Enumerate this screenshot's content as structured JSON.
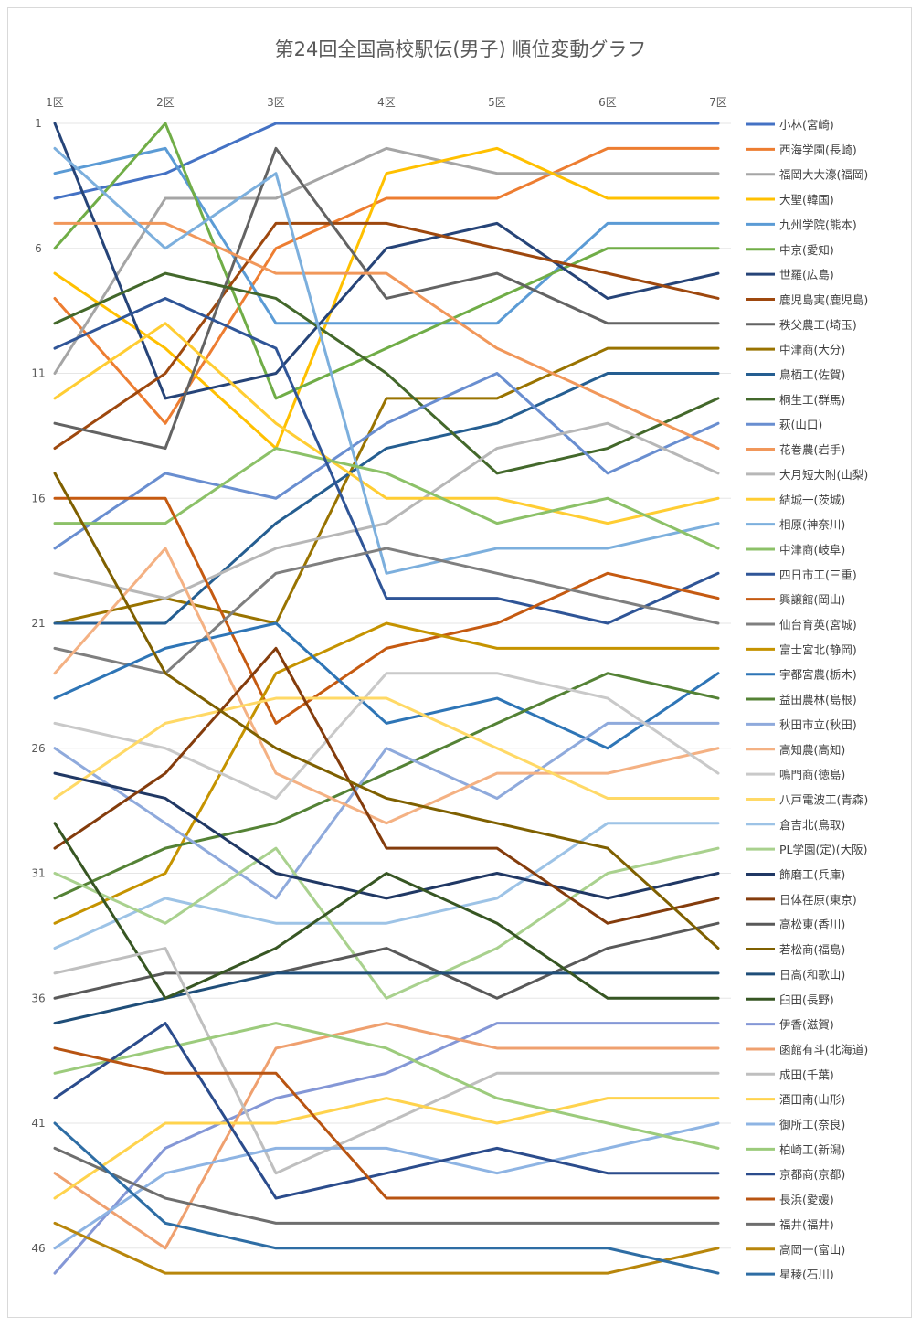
{
  "chart_data": {
    "type": "line",
    "title": "第24回全国高校駅伝(男子) 順位変動グラフ",
    "x": [
      "1区",
      "2区",
      "3区",
      "4区",
      "5区",
      "6区",
      "7区"
    ],
    "y_tick_labels": [
      "1",
      "6",
      "11",
      "16",
      "21",
      "26",
      "31",
      "36",
      "41",
      "46"
    ],
    "y_ticks": [
      1,
      6,
      11,
      16,
      21,
      26,
      31,
      36,
      41,
      46
    ],
    "ylim": [
      1,
      47
    ],
    "y_inverted": true,
    "grid": true,
    "legend_position": "right",
    "series": [
      {
        "name": "小林(宮崎)",
        "color": "#4472C4",
        "values": [
          4,
          3,
          1,
          1,
          1,
          1,
          1
        ]
      },
      {
        "name": "西海学園(長崎)",
        "color": "#ED7D31",
        "values": [
          8,
          13,
          6,
          4,
          4,
          2,
          2
        ]
      },
      {
        "name": "福岡大大濠(福岡)",
        "color": "#A5A5A5",
        "values": [
          11,
          4,
          4,
          2,
          3,
          3,
          3
        ]
      },
      {
        "name": "大聖(韓国)",
        "color": "#FFC000",
        "values": [
          7,
          10,
          14,
          3,
          2,
          4,
          4
        ]
      },
      {
        "name": "九州学院(熊本)",
        "color": "#5B9BD5",
        "values": [
          3,
          2,
          9,
          9,
          9,
          5,
          5
        ]
      },
      {
        "name": "中京(愛知)",
        "color": "#70AD47",
        "values": [
          6,
          1,
          12,
          10,
          8,
          6,
          6
        ]
      },
      {
        "name": "世羅(広島)",
        "color": "#264478",
        "values": [
          1,
          12,
          11,
          6,
          5,
          8,
          7
        ]
      },
      {
        "name": "鹿児島実(鹿児島)",
        "color": "#9E480E",
        "values": [
          14,
          11,
          5,
          5,
          6,
          7,
          8
        ]
      },
      {
        "name": "秩父農工(埼玉)",
        "color": "#636363",
        "values": [
          13,
          14,
          2,
          8,
          7,
          9,
          9
        ]
      },
      {
        "name": "中津商(大分)",
        "color": "#997300",
        "values": [
          21,
          20,
          21,
          12,
          12,
          10,
          10
        ]
      },
      {
        "name": "鳥栖工(佐賀)",
        "color": "#255E91",
        "values": [
          21,
          21,
          17,
          14,
          13,
          11,
          11
        ]
      },
      {
        "name": "桐生工(群馬)",
        "color": "#43682B",
        "values": [
          9,
          7,
          8,
          11,
          15,
          14,
          12
        ]
      },
      {
        "name": "萩(山口)",
        "color": "#698ED0",
        "values": [
          18,
          15,
          16,
          13,
          11,
          15,
          13
        ]
      },
      {
        "name": "花巻農(岩手)",
        "color": "#F1975A",
        "values": [
          5,
          5,
          7,
          7,
          10,
          12,
          14
        ]
      },
      {
        "name": "大月短大附(山梨)",
        "color": "#B7B7B7",
        "values": [
          19,
          20,
          18,
          17,
          14,
          13,
          15
        ]
      },
      {
        "name": "結城一(茨城)",
        "color": "#FFCD33",
        "values": [
          12,
          9,
          13,
          16,
          16,
          17,
          16
        ]
      },
      {
        "name": "相原(神奈川)",
        "color": "#7CAFDD",
        "values": [
          2,
          6,
          3,
          19,
          18,
          18,
          17
        ]
      },
      {
        "name": "中津商(岐阜)",
        "color": "#8CC168",
        "values": [
          17,
          17,
          14,
          15,
          17,
          16,
          18
        ]
      },
      {
        "name": "四日市工(三重)",
        "color": "#2F5597",
        "values": [
          10,
          8,
          10,
          20,
          20,
          21,
          19
        ]
      },
      {
        "name": "興譲館(岡山)",
        "color": "#C55A11",
        "values": [
          16,
          16,
          25,
          22,
          21,
          19,
          20
        ]
      },
      {
        "name": "仙台育英(宮城)",
        "color": "#7F7F7F",
        "values": [
          22,
          23,
          19,
          18,
          19,
          20,
          21
        ]
      },
      {
        "name": "富士宮北(静岡)",
        "color": "#C59300",
        "values": [
          33,
          31,
          23,
          21,
          22,
          22,
          22
        ]
      },
      {
        "name": "宇都宮農(栃木)",
        "color": "#2E75B6",
        "values": [
          24,
          22,
          21,
          25,
          24,
          26,
          23
        ]
      },
      {
        "name": "益田農林(島根)",
        "color": "#548235",
        "values": [
          32,
          30,
          29,
          27,
          25,
          23,
          24
        ]
      },
      {
        "name": "秋田市立(秋田)",
        "color": "#8FAADC",
        "values": [
          26,
          29,
          32,
          26,
          28,
          25,
          25
        ]
      },
      {
        "name": "高知農(高知)",
        "color": "#F4B183",
        "values": [
          23,
          18,
          27,
          29,
          27,
          27,
          26
        ]
      },
      {
        "name": "鳴門商(徳島)",
        "color": "#C9C9C9",
        "values": [
          25,
          26,
          28,
          23,
          23,
          24,
          27
        ]
      },
      {
        "name": "八戸電波工(青森)",
        "color": "#FFD966",
        "values": [
          28,
          25,
          24,
          24,
          26,
          28,
          28
        ]
      },
      {
        "name": "倉吉北(鳥取)",
        "color": "#9DC3E6",
        "values": [
          34,
          32,
          33,
          33,
          32,
          29,
          29
        ]
      },
      {
        "name": "PL学園(定)(大阪)",
        "color": "#A9D18E",
        "values": [
          31,
          33,
          30,
          36,
          34,
          31,
          30
        ]
      },
      {
        "name": "飾磨工(兵庫)",
        "color": "#203864",
        "values": [
          27,
          28,
          31,
          32,
          31,
          32,
          31
        ]
      },
      {
        "name": "日体荏原(東京)",
        "color": "#843C0C",
        "values": [
          30,
          27,
          22,
          30,
          30,
          33,
          32
        ]
      },
      {
        "name": "高松東(香川)",
        "color": "#595959",
        "values": [
          36,
          35,
          35,
          34,
          36,
          34,
          33
        ]
      },
      {
        "name": "若松商(福島)",
        "color": "#7F6000",
        "values": [
          15,
          23,
          26,
          28,
          29,
          30,
          34
        ]
      },
      {
        "name": "日高(和歌山)",
        "color": "#1F4E79",
        "values": [
          37,
          36,
          35,
          35,
          35,
          35,
          35
        ]
      },
      {
        "name": "臼田(長野)",
        "color": "#375623",
        "values": [
          29,
          36,
          34,
          31,
          33,
          36,
          36
        ]
      },
      {
        "name": "伊香(滋賀)",
        "color": "#8497D6",
        "values": [
          47,
          42,
          40,
          39,
          37,
          37,
          37
        ]
      },
      {
        "name": "函館有斗(北海道)",
        "color": "#EFA06F",
        "values": [
          43,
          46,
          38,
          37,
          38,
          38,
          38
        ]
      },
      {
        "name": "成田(千葉)",
        "color": "#BFBFBF",
        "values": [
          35,
          34,
          43,
          41,
          39,
          39,
          39
        ]
      },
      {
        "name": "酒田南(山形)",
        "color": "#FFD34D",
        "values": [
          44,
          41,
          41,
          40,
          41,
          40,
          40
        ]
      },
      {
        "name": "御所工(奈良)",
        "color": "#8EB4E3",
        "values": [
          46,
          43,
          42,
          42,
          43,
          42,
          41
        ]
      },
      {
        "name": "柏崎工(新潟)",
        "color": "#9CCB7C",
        "values": [
          39,
          38,
          37,
          38,
          40,
          41,
          42
        ]
      },
      {
        "name": "京都商(京都)",
        "color": "#2B4C8C",
        "values": [
          40,
          37,
          44,
          43,
          42,
          43,
          43
        ]
      },
      {
        "name": "長浜(愛媛)",
        "color": "#B85412",
        "values": [
          38,
          39,
          39,
          44,
          44,
          44,
          44
        ]
      },
      {
        "name": "福井(福井)",
        "color": "#6E6E6E",
        "values": [
          42,
          44,
          45,
          45,
          45,
          45,
          45
        ]
      },
      {
        "name": "高岡一(富山)",
        "color": "#B8860B",
        "values": [
          45,
          47,
          47,
          47,
          47,
          47,
          46
        ]
      },
      {
        "name": "星稜(石川)",
        "color": "#2E6DA4",
        "values": [
          41,
          45,
          46,
          46,
          46,
          46,
          47
        ]
      }
    ]
  }
}
